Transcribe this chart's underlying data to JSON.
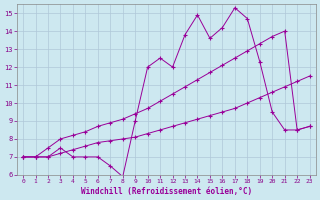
{
  "xlabel": "Windchill (Refroidissement éolien,°C)",
  "background_color": "#cde8f0",
  "grid_color": "#b0c8d8",
  "line_color": "#990099",
  "xlim": [
    -0.5,
    23.5
  ],
  "ylim": [
    6,
    15.5
  ],
  "xticks": [
    0,
    1,
    2,
    3,
    4,
    5,
    6,
    7,
    8,
    9,
    10,
    11,
    12,
    13,
    14,
    15,
    16,
    17,
    18,
    19,
    20,
    21,
    22,
    23
  ],
  "yticks": [
    6,
    7,
    8,
    9,
    10,
    11,
    12,
    13,
    14,
    15
  ],
  "line1_x": [
    0,
    1,
    2,
    3,
    4,
    5,
    6,
    7,
    8,
    9,
    10,
    11,
    12,
    13,
    14,
    15,
    16,
    17,
    18,
    19,
    20,
    21,
    22,
    23
  ],
  "line1_y": [
    7.0,
    7.0,
    7.0,
    7.5,
    7.0,
    7.0,
    7.0,
    6.5,
    5.9,
    9.0,
    12.0,
    12.5,
    12.0,
    13.8,
    14.9,
    13.6,
    14.2,
    15.3,
    14.7,
    12.3,
    9.5,
    8.5,
    8.5,
    8.7
  ],
  "line2_x": [
    0,
    1,
    2,
    3,
    4,
    5,
    6,
    7,
    8,
    9,
    10,
    11,
    12,
    13,
    14,
    15,
    16,
    17,
    18,
    19,
    20,
    21,
    22,
    23
  ],
  "line2_y": [
    7.0,
    7.0,
    7.5,
    8.0,
    8.2,
    8.4,
    8.7,
    8.9,
    9.1,
    9.4,
    9.7,
    10.1,
    10.5,
    10.9,
    11.3,
    11.7,
    12.1,
    12.5,
    12.9,
    13.3,
    13.7,
    14.0,
    8.5,
    8.7
  ],
  "line3_x": [
    0,
    1,
    2,
    3,
    4,
    5,
    6,
    7,
    8,
    9,
    10,
    11,
    12,
    13,
    14,
    15,
    16,
    17,
    18,
    19,
    20,
    21,
    22,
    23
  ],
  "line3_y": [
    7.0,
    7.0,
    7.0,
    7.2,
    7.4,
    7.6,
    7.8,
    7.9,
    8.0,
    8.1,
    8.3,
    8.5,
    8.7,
    8.9,
    9.1,
    9.3,
    9.5,
    9.7,
    10.0,
    10.3,
    10.6,
    10.9,
    11.2,
    11.5
  ]
}
